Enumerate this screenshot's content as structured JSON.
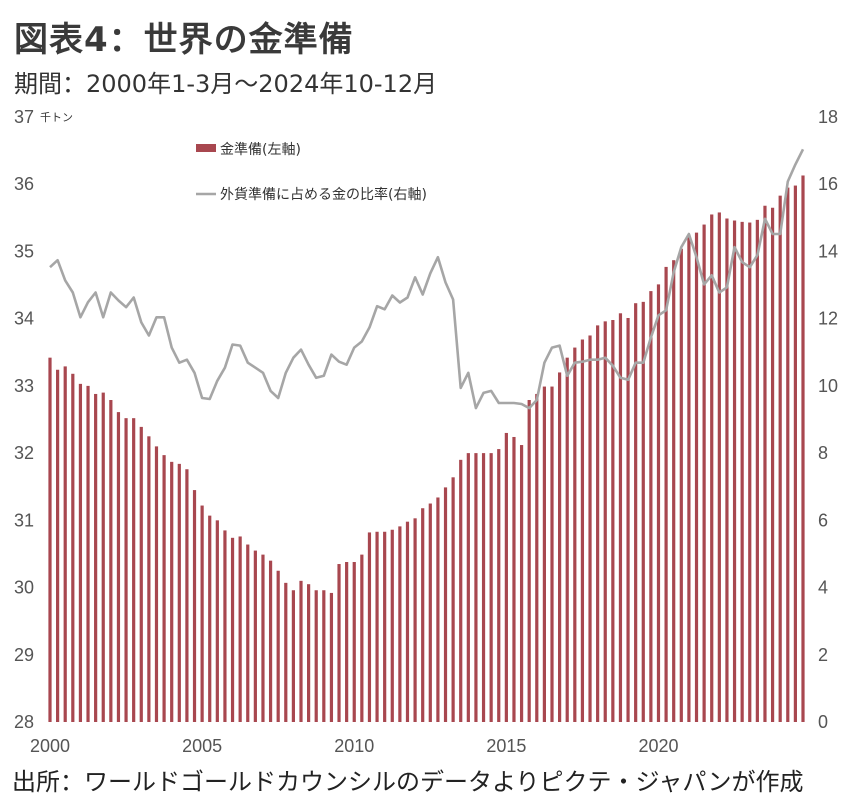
{
  "header": {
    "title": "図表4：世界の金準備",
    "period": "期間：2000年1-3月～2024年10-12月"
  },
  "footer": {
    "source": "出所：ワールドゴールドカウンシルのデータよりピクテ・ジャパンが作成"
  },
  "colors": {
    "bar": "#a8474f",
    "line": "#a6a6a6"
  },
  "chart_data": {
    "type": "bar+line",
    "title": "図表4：世界の金準備",
    "x_start": "2000Q1",
    "x_end": "2024Q4",
    "x_tick_labels": [
      "2000",
      "2005",
      "2010",
      "2015",
      "2020"
    ],
    "x_tick_index": [
      0,
      20,
      40,
      60,
      80
    ],
    "left_axis": {
      "unit_label": "千トン",
      "ylim": [
        28,
        37
      ],
      "ticks": [
        "37",
        "36",
        "35",
        "34",
        "33",
        "32",
        "31",
        "30",
        "29",
        "28"
      ]
    },
    "right_axis": {
      "ylim": [
        0,
        18
      ],
      "ticks": [
        "18",
        "16",
        "14",
        "12",
        "10",
        "8",
        "6",
        "4",
        "2",
        "0"
      ]
    },
    "legend": [
      "金準備(左軸)",
      "外貨準備に占める金の比率(右軸)"
    ],
    "legend_position": "top-left",
    "series": [
      {
        "name": "金準備(左軸)",
        "type": "bar",
        "axis": "left",
        "values": [
          33.42,
          33.24,
          33.29,
          33.18,
          33.03,
          33.0,
          32.88,
          32.9,
          32.79,
          32.61,
          32.52,
          32.52,
          32.39,
          32.25,
          32.1,
          31.97,
          31.87,
          31.84,
          31.76,
          31.45,
          31.22,
          31.07,
          31.0,
          30.85,
          30.74,
          30.76,
          30.64,
          30.55,
          30.49,
          30.4,
          30.25,
          30.07,
          29.96,
          30.1,
          30.05,
          29.96,
          29.96,
          29.92,
          30.35,
          30.38,
          30.38,
          30.49,
          30.82,
          30.83,
          30.83,
          30.86,
          30.91,
          30.98,
          31.03,
          31.18,
          31.25,
          31.34,
          31.49,
          31.64,
          31.9,
          32.0,
          32.0,
          32.0,
          32.0,
          32.06,
          32.3,
          32.24,
          32.12,
          32.79,
          32.88,
          32.99,
          32.99,
          33.2,
          33.42,
          33.57,
          33.69,
          33.75,
          33.9,
          33.96,
          33.98,
          34.08,
          34.01,
          34.23,
          34.25,
          34.41,
          34.51,
          34.77,
          34.87,
          35.04,
          35.23,
          35.28,
          35.4,
          35.55,
          35.58,
          35.49,
          35.46,
          35.44,
          35.43,
          35.47,
          35.68,
          35.65,
          35.83,
          35.95,
          35.98,
          36.13
        ]
      },
      {
        "name": "外貨準備に占める金の比率(右軸)",
        "type": "line",
        "axis": "right",
        "values": [
          13.53,
          13.74,
          13.14,
          12.78,
          12.04,
          12.49,
          12.78,
          12.04,
          12.78,
          12.54,
          12.34,
          12.63,
          11.89,
          11.5,
          12.04,
          12.04,
          11.14,
          10.69,
          10.78,
          10.39,
          9.64,
          9.61,
          10.15,
          10.54,
          11.23,
          11.2,
          10.69,
          10.54,
          10.39,
          9.85,
          9.64,
          10.39,
          10.84,
          11.08,
          10.63,
          10.24,
          10.3,
          10.93,
          10.72,
          10.63,
          11.14,
          11.32,
          11.74,
          12.37,
          12.28,
          12.69,
          12.48,
          12.63,
          13.23,
          12.72,
          13.35,
          13.83,
          13.08,
          12.57,
          9.94,
          10.39,
          9.34,
          9.79,
          9.85,
          9.49,
          9.49,
          9.49,
          9.46,
          9.34,
          9.58,
          10.69,
          11.14,
          11.2,
          10.3,
          10.69,
          10.72,
          10.78,
          10.78,
          10.84,
          10.6,
          10.24,
          10.18,
          10.69,
          10.69,
          11.44,
          12.1,
          12.25,
          13.38,
          14.13,
          14.52,
          13.83,
          13.02,
          13.29,
          12.78,
          12.93,
          14.13,
          13.68,
          13.53,
          13.89,
          14.97,
          14.52,
          14.52,
          16.08,
          16.59,
          17.04
        ]
      }
    ]
  }
}
